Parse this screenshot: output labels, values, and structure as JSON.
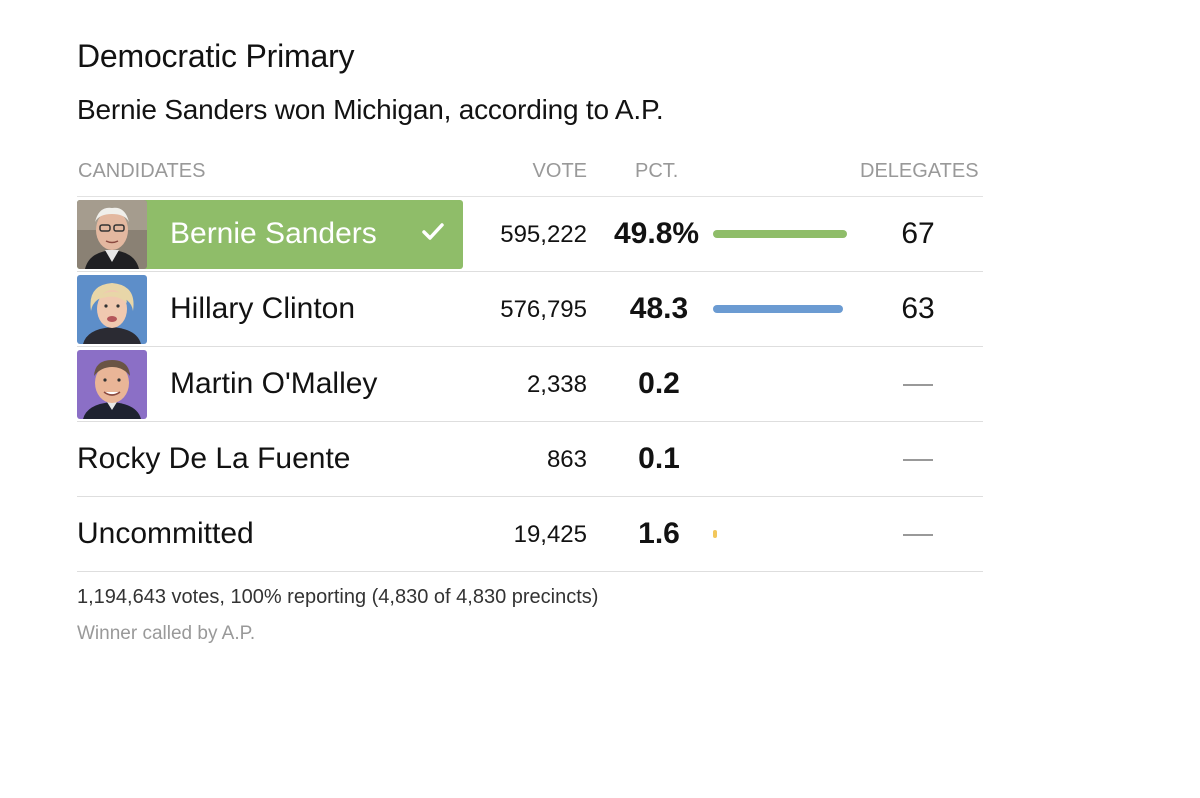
{
  "title": "Democratic Primary",
  "subtitle": "Bernie Sanders won Michigan, according to A.P.",
  "columns": {
    "candidates": "CANDIDATES",
    "vote": "VOTE",
    "pct": "PCT.",
    "delegates": "DELEGATES"
  },
  "rows": [
    {
      "name": "Bernie Sanders",
      "vote": "595,222",
      "pct": "49.8%",
      "pct_value": 49.8,
      "delegates": "67",
      "winner": true,
      "bar_color": "#8fbd69"
    },
    {
      "name": "Hillary Clinton",
      "vote": "576,795",
      "pct": "48.3",
      "pct_value": 48.3,
      "delegates": "63",
      "winner": false,
      "bar_color": "#6b9bd2"
    },
    {
      "name": "Martin O'Malley",
      "vote": "2,338",
      "pct": "0.2",
      "pct_value": 0.2,
      "delegates": "—",
      "winner": false
    },
    {
      "name": "Rocky De La Fuente",
      "vote": "863",
      "pct": "0.1",
      "pct_value": 0.1,
      "delegates": "—",
      "winner": false
    },
    {
      "name": "Uncommitted",
      "vote": "19,425",
      "pct": "1.6",
      "pct_value": 1.6,
      "delegates": "—",
      "winner": false,
      "bar_color": "#f2c75c"
    }
  ],
  "footer": {
    "summary": "1,194,643 votes, 100% reporting (4,830 of 4,830 precincts)",
    "note": "Winner called by A.P."
  },
  "colors": {
    "winner_green": "#8fbd69",
    "clinton_blue": "#6b9bd2",
    "uncommitted_yellow": "#f2c75c"
  }
}
